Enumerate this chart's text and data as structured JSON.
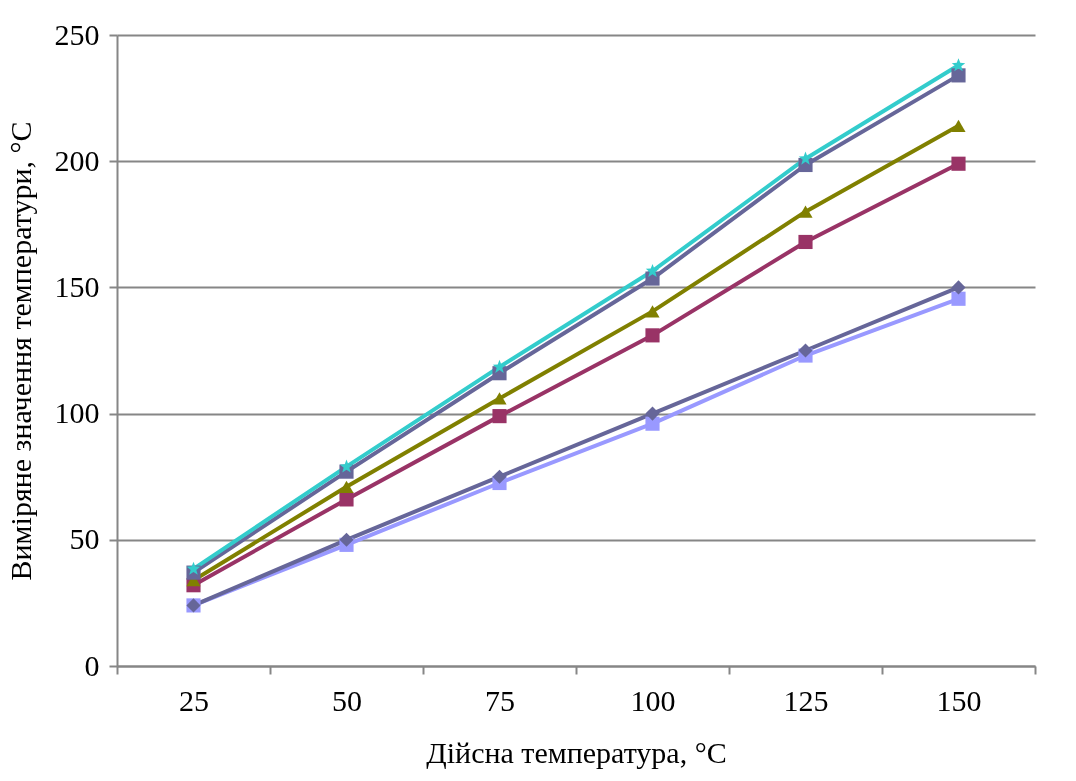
{
  "chart_data": {
    "type": "line",
    "xlabel": "Дійсна температура, °C",
    "ylabel": "Виміряне  значення  температури,  °C",
    "categories": [
      "25",
      "50",
      "75",
      "100",
      "125",
      "150"
    ],
    "series": [
      {
        "color": "#9999ff",
        "marker": "square",
        "values": [
          24,
          48,
          72.5,
          96,
          123,
          145.5
        ]
      },
      {
        "color": "#666699",
        "marker": "diamond",
        "values": [
          24,
          50,
          75,
          100,
          125,
          150
        ]
      },
      {
        "color": "#993366",
        "marker": "square",
        "values": [
          32,
          66,
          99,
          131,
          168,
          199
        ]
      },
      {
        "color": "#808000",
        "marker": "triangle",
        "values": [
          34,
          71,
          106,
          140.5,
          180,
          214
        ]
      },
      {
        "color": "#666699",
        "marker": "square",
        "values": [
          37,
          77,
          116,
          153.5,
          198.5,
          234
        ]
      },
      {
        "color": "#33cccc",
        "marker": "star",
        "values": [
          38.5,
          79,
          118.5,
          156.5,
          201,
          238
        ]
      }
    ],
    "ylim": [
      0,
      250
    ],
    "yticks": [
      0,
      50,
      100,
      150,
      200,
      250
    ],
    "grid": "y",
    "legend": false,
    "line_style": "solid"
  }
}
